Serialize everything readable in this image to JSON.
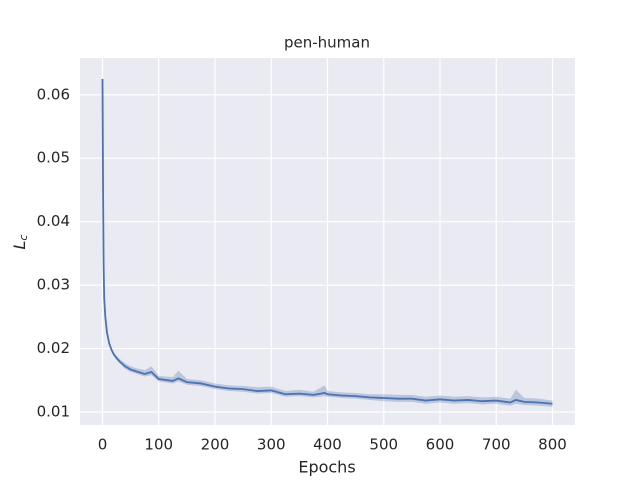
{
  "chart_data": {
    "type": "line",
    "title": "pen-human",
    "x_label": "Epochs",
    "y_label": {
      "base": "L",
      "sub": "c"
    },
    "x": [
      0,
      1,
      2,
      3,
      5,
      8,
      12,
      16,
      20,
      25,
      30,
      40,
      50,
      60,
      75,
      87,
      100,
      125,
      135,
      150,
      175,
      200,
      225,
      250,
      275,
      300,
      325,
      350,
      375,
      395,
      400,
      425,
      450,
      475,
      500,
      525,
      550,
      575,
      600,
      625,
      650,
      675,
      700,
      725,
      735,
      750,
      775,
      800
    ],
    "series": [
      {
        "color": "#4c72b0",
        "band_color": "#4c72b0",
        "values": [
          0.0625,
          0.045,
          0.033,
          0.028,
          0.025,
          0.0225,
          0.0208,
          0.0198,
          0.0191,
          0.0185,
          0.018,
          0.0172,
          0.0167,
          0.0164,
          0.016,
          0.0163,
          0.0152,
          0.0149,
          0.0153,
          0.0147,
          0.0145,
          0.014,
          0.0137,
          0.0136,
          0.0133,
          0.0134,
          0.0128,
          0.0129,
          0.0127,
          0.013,
          0.0128,
          0.0126,
          0.0125,
          0.0123,
          0.0122,
          0.0121,
          0.0121,
          0.0118,
          0.012,
          0.0118,
          0.0119,
          0.0117,
          0.0118,
          0.0115,
          0.0119,
          0.0116,
          0.0115,
          0.0113
        ],
        "lower": [
          0.0625,
          0.045,
          0.033,
          0.028,
          0.0248,
          0.0222,
          0.0205,
          0.0195,
          0.0188,
          0.0182,
          0.0177,
          0.0168,
          0.0163,
          0.016,
          0.0156,
          0.0158,
          0.0148,
          0.0145,
          0.0148,
          0.0143,
          0.0141,
          0.0136,
          0.0133,
          0.0132,
          0.0129,
          0.013,
          0.0124,
          0.0125,
          0.0123,
          0.0125,
          0.0124,
          0.0122,
          0.0121,
          0.0119,
          0.0117,
          0.0116,
          0.0116,
          0.0113,
          0.0115,
          0.0113,
          0.0114,
          0.0112,
          0.0113,
          0.011,
          0.0113,
          0.0111,
          0.011,
          0.0108
        ],
        "upper": [
          0.0625,
          0.045,
          0.033,
          0.028,
          0.0252,
          0.0228,
          0.0211,
          0.0201,
          0.0194,
          0.0189,
          0.0184,
          0.0177,
          0.0172,
          0.0169,
          0.0166,
          0.0172,
          0.0157,
          0.0155,
          0.0165,
          0.0152,
          0.015,
          0.0145,
          0.0142,
          0.0141,
          0.0139,
          0.014,
          0.0133,
          0.0135,
          0.0132,
          0.0142,
          0.0133,
          0.0131,
          0.013,
          0.0128,
          0.0128,
          0.0127,
          0.0127,
          0.0124,
          0.0126,
          0.0124,
          0.0125,
          0.0123,
          0.0124,
          0.0121,
          0.0135,
          0.0122,
          0.0121,
          0.0118
        ]
      }
    ],
    "xlim": [
      -40,
      840
    ],
    "xticks": [
      0,
      100,
      200,
      300,
      400,
      500,
      600,
      700,
      800
    ],
    "ylim": [
      0.00795,
      0.0658
    ],
    "yticks": [
      0.01,
      0.02,
      0.03,
      0.04,
      0.05,
      0.06
    ],
    "grid": true,
    "background": "#eaeaf2"
  }
}
